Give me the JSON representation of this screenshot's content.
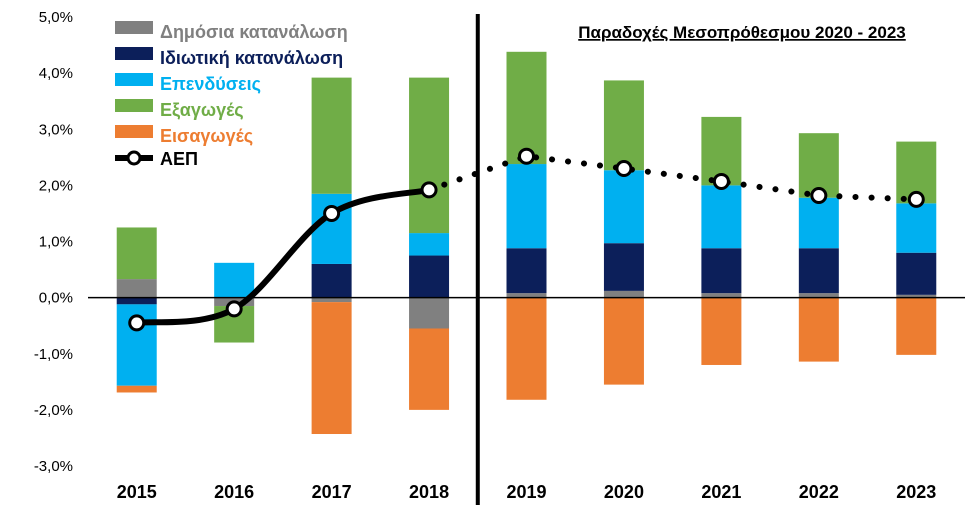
{
  "chart_data": {
    "type": "bar",
    "title": "Παραδοχές Μεσοπρόθεσμου 2020 - 2023",
    "categories": [
      "2015",
      "2016",
      "2017",
      "2018",
      "2019",
      "2020",
      "2021",
      "2022",
      "2023"
    ],
    "ylim": [
      -3.0,
      5.0
    ],
    "yticks": [
      "-3,0%",
      "-2,0%",
      "-1,0%",
      "0,0%",
      "1,0%",
      "2,0%",
      "3,0%",
      "4,0%",
      "5,0%"
    ],
    "ytick_values": [
      -3,
      -2,
      -1,
      0,
      1,
      2,
      3,
      4,
      5
    ],
    "divider_between": [
      "2018",
      "2019"
    ],
    "legend_position": "top-left",
    "series": [
      {
        "name": "Δημόσια κατανάλωση",
        "color": "#808080",
        "values": [
          0.33,
          -0.15,
          -0.08,
          -0.55,
          0.08,
          0.12,
          0.08,
          0.08,
          0.05
        ]
      },
      {
        "name": "Ιδιωτική κατανάλωση",
        "color": "#0c1f5a",
        "values": [
          -0.12,
          0.0,
          0.6,
          0.75,
          0.8,
          0.85,
          0.8,
          0.8,
          0.75
        ]
      },
      {
        "name": "Επενδύσεις",
        "color": "#00b0f0",
        "values": [
          -1.45,
          0.62,
          1.25,
          0.4,
          1.5,
          1.3,
          1.12,
          0.9,
          0.88
        ]
      },
      {
        "name": "Εξαγωγές",
        "color": "#70ad47",
        "values": [
          0.92,
          -0.65,
          2.07,
          2.77,
          2.0,
          1.6,
          1.22,
          1.15,
          1.1
        ]
      },
      {
        "name": "Εισαγωγές",
        "color": "#ed7d31",
        "values": [
          -0.12,
          0.0,
          -2.35,
          -1.45,
          -1.82,
          -1.55,
          -1.2,
          -1.14,
          -1.02
        ]
      }
    ],
    "line": {
      "name": "ΑΕΠ",
      "color": "#000000",
      "values": [
        -0.45,
        -0.2,
        1.5,
        1.92,
        2.52,
        2.3,
        2.07,
        1.82,
        1.75
      ],
      "solid_until": "2018"
    }
  }
}
